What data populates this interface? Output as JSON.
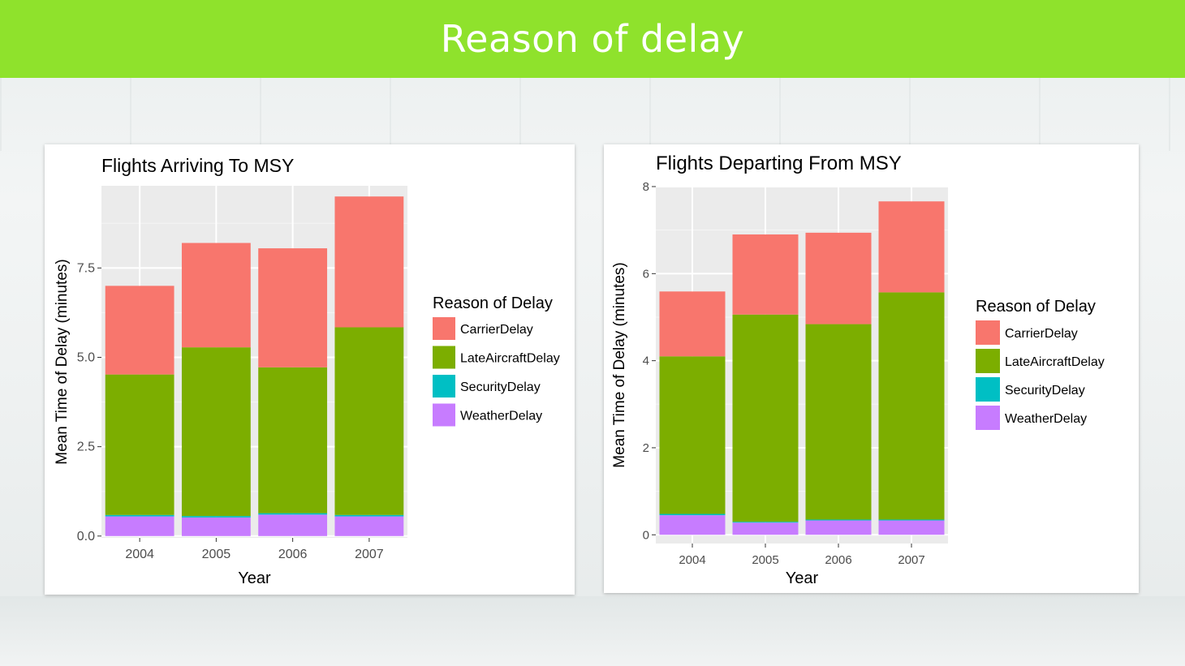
{
  "slide": {
    "title": "Reason of delay"
  },
  "colors": {
    "title_band": "#8fe22c",
    "CarrierDelay": "#f8766d",
    "LateAircraftDelay": "#7cae00",
    "SecurityDelay": "#00bfc4",
    "WeatherDelay": "#c77cff",
    "plot_panel": "#ebebeb",
    "grid": "#ffffff"
  },
  "chart_data": [
    {
      "type": "bar",
      "stacked": true,
      "title": "Flights Arriving To MSY",
      "xlabel": "Year",
      "ylabel": "Mean Time of Delay (minutes)",
      "categories": [
        "2004",
        "2005",
        "2006",
        "2007"
      ],
      "yticks": [
        "0.0",
        "2.5",
        "5.0",
        "7.5"
      ],
      "ytick_values": [
        0,
        2.5,
        5,
        7.5
      ],
      "ylim": [
        -0.05,
        9.8
      ],
      "legend_title": "Reason of Delay",
      "legend_position": "right",
      "series": [
        {
          "name": "WeatherDelay",
          "values": [
            0.55,
            0.52,
            0.6,
            0.55
          ]
        },
        {
          "name": "SecurityDelay",
          "values": [
            0.04,
            0.04,
            0.04,
            0.04
          ]
        },
        {
          "name": "LateAircraftDelay",
          "values": [
            3.93,
            4.72,
            4.08,
            5.25
          ]
        },
        {
          "name": "CarrierDelay",
          "values": [
            2.48,
            2.92,
            3.33,
            3.66
          ]
        }
      ]
    },
    {
      "type": "bar",
      "stacked": true,
      "title": "Flights Departing From MSY",
      "xlabel": "Year",
      "ylabel": "Mean Time of Delay (minutes)",
      "categories": [
        "2004",
        "2005",
        "2006",
        "2007"
      ],
      "yticks": [
        "0",
        "2",
        "4",
        "6",
        "8"
      ],
      "ytick_values": [
        0,
        2,
        4,
        6,
        8
      ],
      "ylim": [
        -0.2,
        8.0
      ],
      "legend_title": "Reason of Delay",
      "legend_position": "right",
      "series": [
        {
          "name": "WeatherDelay",
          "values": [
            0.45,
            0.28,
            0.33,
            0.33
          ]
        },
        {
          "name": "SecurityDelay",
          "values": [
            0.03,
            0.02,
            0.02,
            0.02
          ]
        },
        {
          "name": "LateAircraftDelay",
          "values": [
            3.62,
            4.76,
            4.49,
            5.22
          ]
        },
        {
          "name": "CarrierDelay",
          "values": [
            1.49,
            1.84,
            2.1,
            2.09
          ]
        }
      ]
    }
  ]
}
